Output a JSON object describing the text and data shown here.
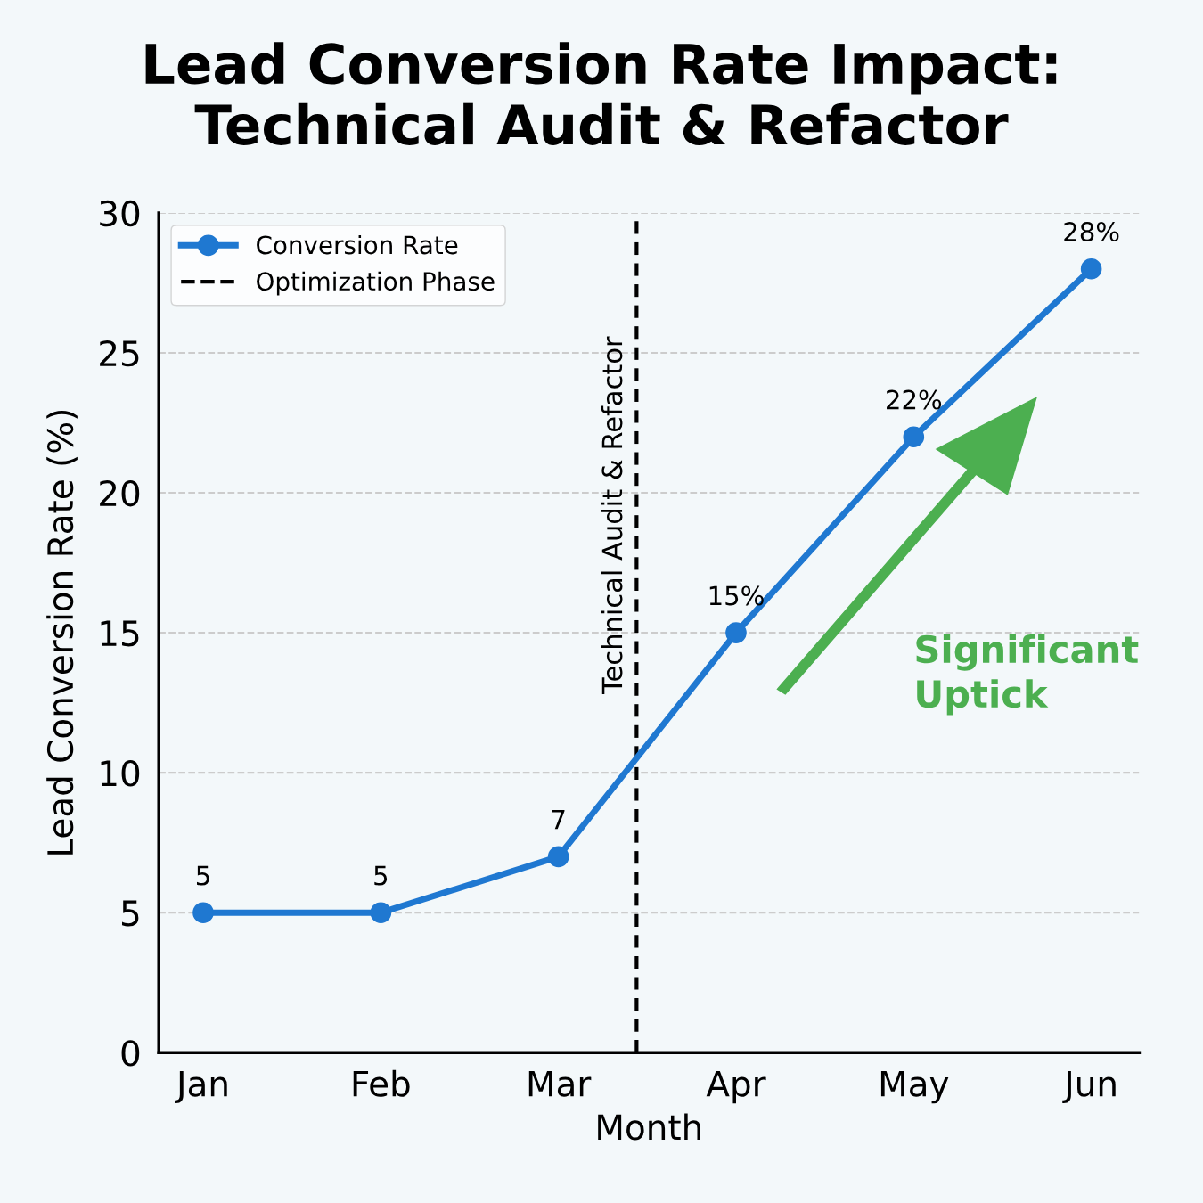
{
  "chart_data": {
    "type": "line",
    "title": "Lead Conversion Rate Impact:\nTechnical Audit & Refactor",
    "xlabel": "Month",
    "ylabel": "Lead Conversion Rate (%)",
    "categories": [
      "Jan",
      "Feb",
      "Mar",
      "Apr",
      "May",
      "Jun"
    ],
    "series": [
      {
        "name": "Conversion Rate",
        "color": "#1f78d1",
        "values": [
          5,
          5,
          7,
          15,
          22,
          28
        ],
        "value_labels": [
          "5",
          "5",
          "7",
          "15%",
          "22%",
          "28%"
        ]
      }
    ],
    "ylim": [
      0,
      30
    ],
    "yticks": [
      0,
      5,
      10,
      15,
      20,
      25,
      30
    ],
    "annotations": [
      "Technical Audit & Refactor",
      "Significant Uptick",
      "Optimization Phase"
    ],
    "grid": "y",
    "legend": "top left",
    "marker": "circle",
    "line_style": "solid"
  }
}
